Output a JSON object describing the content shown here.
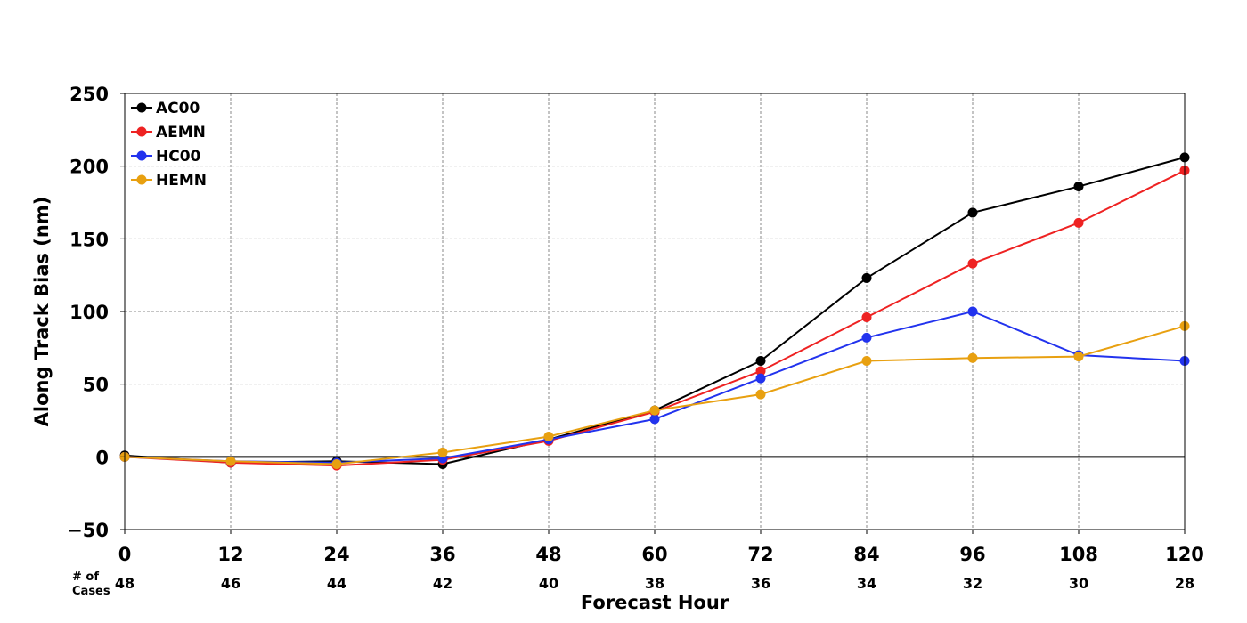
{
  "chart_data": {
    "type": "line",
    "title": "",
    "xlabel": "Forecast Hour",
    "ylabel": "Along Track Bias (nm)",
    "x": [
      0,
      12,
      24,
      36,
      48,
      60,
      72,
      84,
      96,
      108,
      120
    ],
    "xticks": [
      "0",
      "12",
      "24",
      "36",
      "48",
      "60",
      "72",
      "84",
      "96",
      "108",
      "120"
    ],
    "xlim": [
      0,
      120
    ],
    "ylim": [
      -50,
      250
    ],
    "yticks": [
      -50,
      0,
      50,
      100,
      150,
      200,
      250
    ],
    "ytick_labels": [
      "−50",
      "0",
      "50",
      "100",
      "150",
      "200",
      "250"
    ],
    "grid": true,
    "legend_position": "top-left",
    "cases_title_line1": "# of",
    "cases_title_line2": "Cases",
    "cases": [
      "48",
      "46",
      "44",
      "42",
      "40",
      "38",
      "36",
      "34",
      "32",
      "30",
      "28"
    ],
    "series": [
      {
        "name": "AC00",
        "color": "#000000",
        "values": [
          1,
          -4,
          -3,
          -5,
          12,
          32,
          66,
          123,
          168,
          186,
          206
        ]
      },
      {
        "name": "AEMN",
        "color": "#ee2222",
        "values": [
          0,
          -4,
          -6,
          -2,
          11,
          31,
          59,
          96,
          133,
          161,
          197
        ]
      },
      {
        "name": "HC00",
        "color": "#2233ee",
        "values": [
          0,
          -3,
          -4,
          -1,
          12,
          26,
          54,
          82,
          100,
          70,
          66
        ]
      },
      {
        "name": "HEMN",
        "color": "#e8a010",
        "values": [
          0,
          -3,
          -5,
          3,
          14,
          32,
          43,
          66,
          68,
          69,
          90
        ]
      }
    ]
  }
}
